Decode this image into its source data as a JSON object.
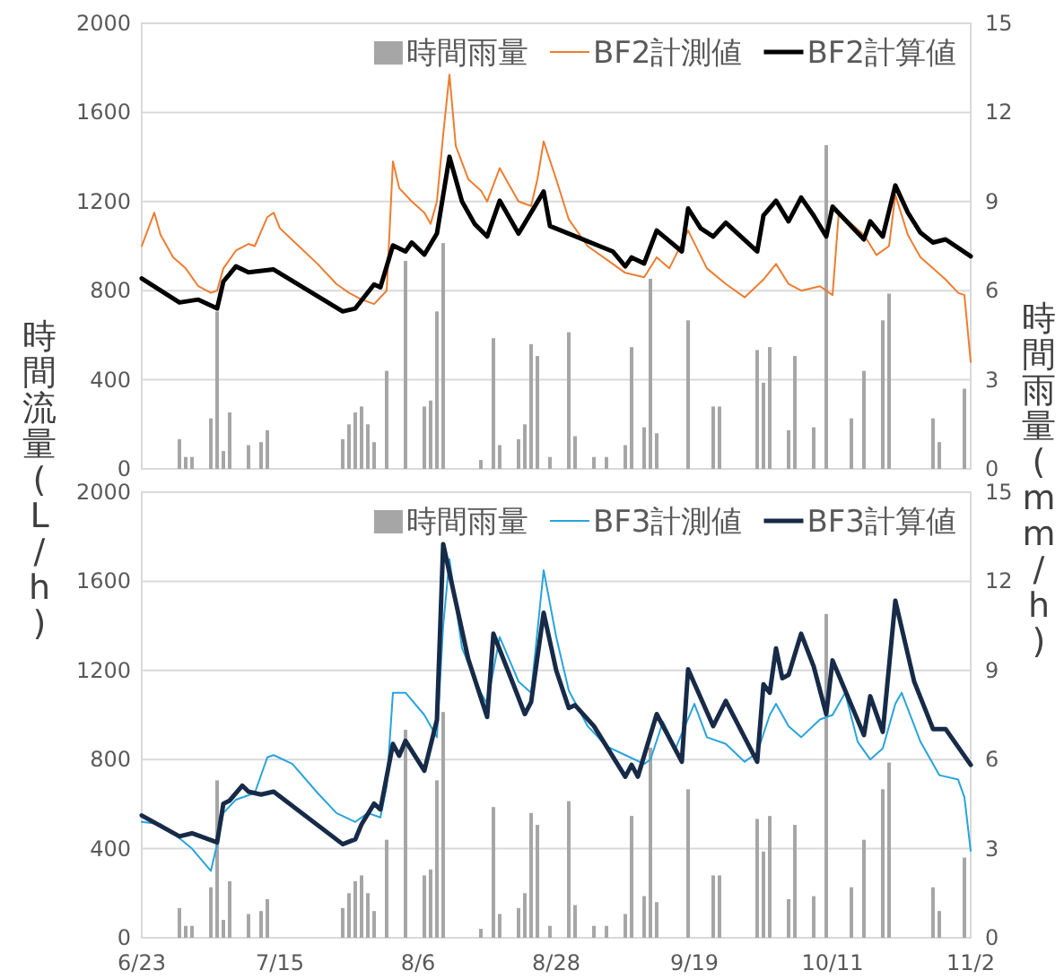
{
  "chart_data": [
    {
      "type": "line",
      "ylabel": "時間流量(L/h)",
      "y2label": "時間雨量(mm/h)",
      "tick_labels": "y",
      "grid": "y",
      "legend": "top right",
      "xlim": [
        "--06-23",
        "--11-02"
      ],
      "ylim": [
        0,
        2000
      ],
      "yticks": [
        0,
        400,
        800,
        1200,
        1600,
        2000
      ],
      "y2lim": [
        0,
        15
      ],
      "y2ticks": [
        0,
        3,
        6,
        9,
        12,
        15
      ],
      "series": [
        {
          "name": "時間雨量",
          "type": "bar",
          "axis": "y2",
          "color": "#a6a6a6",
          "x": [
            "--06-29",
            "--06-30",
            "--07-01",
            "--07-04",
            "--07-05",
            "--07-06",
            "--07-07",
            "--07-10",
            "--07-12",
            "--07-13",
            "--07-25",
            "--07-26",
            "--07-27",
            "--07-28",
            "--07-29",
            "--07-30",
            "--08-01",
            "--08-04",
            "--08-07",
            "--08-08",
            "--08-09",
            "--08-10",
            "--08-16",
            "--08-18",
            "--08-19",
            "--08-22",
            "--08-23",
            "--08-24",
            "--08-25",
            "--08-27",
            "--08-30",
            "--08-31",
            "--09-03",
            "--09-05",
            "--09-08",
            "--09-09",
            "--09-11",
            "--09-12",
            "--09-13",
            "--09-18",
            "--09-22",
            "--09-23",
            "--09-29",
            "--09-30",
            "--10-01",
            "--10-04",
            "--10-05",
            "--10-08",
            "--10-10",
            "--10-14",
            "--10-16",
            "--10-19",
            "--10-20",
            "--10-27",
            "--10-28",
            "--11-01"
          ],
          "values": [
            1.0,
            0.4,
            0.4,
            1.7,
            5.3,
            0.6,
            1.9,
            0.8,
            0.9,
            1.3,
            1.0,
            1.5,
            1.9,
            2.1,
            1.5,
            0.9,
            3.3,
            7.0,
            2.1,
            2.3,
            5.3,
            7.6,
            0.3,
            4.4,
            0.8,
            1.0,
            1.5,
            4.2,
            3.8,
            0.4,
            4.6,
            1.1,
            0.4,
            0.4,
            0.8,
            4.1,
            1.4,
            6.4,
            1.2,
            5.0,
            2.1,
            2.1,
            4.0,
            2.9,
            4.1,
            1.3,
            3.8,
            1.4,
            10.9,
            1.7,
            3.3,
            5.0,
            5.9,
            1.7,
            0.9,
            2.7
          ]
        },
        {
          "name": "BF2計測値",
          "color": "#ed7d31",
          "x": [
            "--06-23",
            "--06-25",
            "--06-26",
            "--06-28",
            "--06-30",
            "--07-02",
            "--07-04",
            "--07-05",
            "--07-06",
            "--07-08",
            "--07-10",
            "--07-11",
            "--07-13",
            "--07-14",
            "--07-15",
            "--07-18",
            "--07-21",
            "--07-24",
            "--07-26",
            "--07-28",
            "--07-30",
            "--08-01",
            "--08-02",
            "--08-03",
            "--08-05",
            "--08-07",
            "--08-08",
            "--08-09",
            "--08-10",
            "--08-11",
            "--08-12",
            "--08-14",
            "--08-16",
            "--08-17",
            "--08-19",
            "--08-20",
            "--08-22",
            "--08-24",
            "--08-25",
            "--08-26",
            "--08-28",
            "--08-30",
            "--09-02",
            "--09-05",
            "--09-08",
            "--09-11",
            "--09-13",
            "--09-15",
            "--09-18",
            "--09-21",
            "--09-24",
            "--09-27",
            "--09-30",
            "--10-02",
            "--10-04",
            "--10-06",
            "--10-09",
            "--10-11",
            "--10-12",
            "--10-14",
            "--10-16",
            "--10-18",
            "--10-20",
            "--10-21",
            "--10-23",
            "--10-25",
            "--10-27",
            "--10-29",
            "--10-31",
            "--11-01",
            "--11-02"
          ],
          "values": [
            1000,
            1150,
            1050,
            950,
            900,
            820,
            790,
            800,
            900,
            980,
            1010,
            1000,
            1130,
            1150,
            1080,
            1000,
            920,
            830,
            790,
            760,
            740,
            800,
            1380,
            1260,
            1200,
            1150,
            1100,
            1200,
            1500,
            1770,
            1450,
            1300,
            1250,
            1200,
            1350,
            1300,
            1200,
            1180,
            1300,
            1470,
            1300,
            1120,
            1000,
            940,
            880,
            860,
            950,
            900,
            1070,
            900,
            830,
            770,
            850,
            920,
            830,
            800,
            820,
            780,
            1150,
            1100,
            1050,
            960,
            1000,
            1230,
            1050,
            950,
            900,
            850,
            790,
            780,
            480
          ]
        },
        {
          "name": "BF2計算値",
          "color": "#000000",
          "x": [
            "--06-23",
            "--06-29",
            "--07-02",
            "--07-05",
            "--07-06",
            "--07-08",
            "--07-10",
            "--07-14",
            "--07-25",
            "--07-27",
            "--07-30",
            "--07-31",
            "--08-02",
            "--08-04",
            "--08-05",
            "--08-07",
            "--08-09",
            "--08-11",
            "--08-13",
            "--08-15",
            "--08-17",
            "--08-19",
            "--08-22",
            "--08-26",
            "--08-27",
            "--08-30",
            "--09-06",
            "--09-08",
            "--09-09",
            "--09-11",
            "--09-13",
            "--09-17",
            "--09-18",
            "--09-20",
            "--09-22",
            "--09-24",
            "--09-29",
            "--09-30",
            "--10-02",
            "--10-04",
            "--10-06",
            "--10-08",
            "--10-10",
            "--10-11",
            "--10-16",
            "--10-17",
            "--10-19",
            "--10-21",
            "--10-23",
            "--10-25",
            "--10-27",
            "--10-29",
            "--11-02"
          ],
          "values": [
            855,
            747,
            760,
            720,
            841,
            909,
            882,
            895,
            707,
            720,
            828,
            815,
            1003,
            976,
            1016,
            962,
            1056,
            1401,
            1200,
            1100,
            1043,
            1204,
            1056,
            1245,
            1090,
            1056,
            976,
            909,
            949,
            922,
            1070,
            976,
            1169,
            1080,
            1043,
            1105,
            976,
            1137,
            1204,
            1111,
            1218,
            1137,
            1043,
            1177,
            1030,
            1111,
            1043,
            1272,
            1150,
            1060,
            1016,
            1030,
            954
          ]
        }
      ]
    },
    {
      "type": "line",
      "grid": "y",
      "legend": "top right",
      "xlim": [
        "--06-23",
        "--11-02"
      ],
      "xticks": [
        {
          "value": "--06-23",
          "label": "6/23"
        },
        {
          "value": "--07-15",
          "label": "7/15"
        },
        {
          "value": "--08-06",
          "label": "8/6"
        },
        {
          "value": "--08-28",
          "label": "8/28"
        },
        {
          "value": "--09-19",
          "label": "9/19"
        },
        {
          "value": "--10-11",
          "label": "10/11"
        },
        {
          "value": "--11-02",
          "label": "11/2"
        }
      ],
      "ylim": [
        0,
        2000
      ],
      "yticks": [
        0,
        400,
        800,
        1200,
        1600,
        2000
      ],
      "y2lim": [
        0,
        15
      ],
      "y2ticks": [
        0,
        3,
        6,
        9,
        12,
        15
      ],
      "series": [
        {
          "name": "時間雨量",
          "type": "bar",
          "axis": "y2",
          "color": "#a6a6a6",
          "x": [
            "--06-29",
            "--06-30",
            "--07-01",
            "--07-04",
            "--07-05",
            "--07-06",
            "--07-07",
            "--07-10",
            "--07-12",
            "--07-13",
            "--07-25",
            "--07-26",
            "--07-27",
            "--07-28",
            "--07-29",
            "--07-30",
            "--08-01",
            "--08-04",
            "--08-07",
            "--08-08",
            "--08-09",
            "--08-10",
            "--08-16",
            "--08-18",
            "--08-19",
            "--08-22",
            "--08-23",
            "--08-24",
            "--08-25",
            "--08-27",
            "--08-30",
            "--08-31",
            "--09-03",
            "--09-05",
            "--09-08",
            "--09-09",
            "--09-11",
            "--09-12",
            "--09-13",
            "--09-18",
            "--09-22",
            "--09-23",
            "--09-29",
            "--09-30",
            "--10-01",
            "--10-04",
            "--10-05",
            "--10-08",
            "--10-10",
            "--10-14",
            "--10-16",
            "--10-19",
            "--10-20",
            "--10-27",
            "--10-28",
            "--11-01"
          ],
          "values": [
            1.0,
            0.4,
            0.4,
            1.7,
            5.3,
            0.6,
            1.9,
            0.8,
            0.9,
            1.3,
            1.0,
            1.5,
            1.9,
            2.1,
            1.5,
            0.9,
            3.3,
            7.0,
            2.1,
            2.3,
            5.3,
            7.6,
            0.3,
            4.4,
            0.8,
            1.0,
            1.5,
            4.2,
            3.8,
            0.4,
            4.6,
            1.1,
            0.4,
            0.4,
            0.8,
            4.1,
            1.4,
            6.4,
            1.2,
            5.0,
            2.1,
            2.1,
            4.0,
            2.9,
            4.1,
            1.3,
            3.8,
            1.4,
            10.9,
            1.7,
            3.3,
            5.0,
            5.9,
            1.7,
            0.9,
            2.7
          ]
        },
        {
          "name": "BF3計測値",
          "color": "#29a3dc",
          "x": [
            "--06-23",
            "--06-26",
            "--06-28",
            "--07-01",
            "--07-04",
            "--07-05",
            "--07-06",
            "--07-08",
            "--07-11",
            "--07-13",
            "--07-14",
            "--07-17",
            "--07-21",
            "--07-24",
            "--07-27",
            "--07-29",
            "--07-31",
            "--08-01",
            "--08-02",
            "--08-04",
            "--08-07",
            "--08-09",
            "--08-10",
            "--08-11",
            "--08-13",
            "--08-16",
            "--08-17",
            "--08-19",
            "--08-22",
            "--08-24",
            "--08-26",
            "--08-28",
            "--08-30",
            "--09-02",
            "--09-05",
            "--09-08",
            "--09-11",
            "--09-12",
            "--09-14",
            "--09-16",
            "--09-19",
            "--09-21",
            "--09-24",
            "--09-27",
            "--09-29",
            "--10-01",
            "--10-02",
            "--10-04",
            "--10-06",
            "--10-09",
            "--10-11",
            "--10-13",
            "--10-15",
            "--10-17",
            "--10-19",
            "--10-21",
            "--10-22",
            "--10-25",
            "--10-28",
            "--10-31",
            "--11-01",
            "--11-02"
          ],
          "values": [
            520,
            510,
            470,
            400,
            300,
            420,
            560,
            620,
            650,
            810,
            820,
            780,
            650,
            560,
            520,
            560,
            540,
            680,
            1100,
            1100,
            1000,
            900,
            1400,
            1700,
            1300,
            1100,
            1050,
            1350,
            1150,
            1100,
            1650,
            1350,
            1110,
            950,
            860,
            820,
            780,
            800,
            970,
            850,
            1050,
            900,
            870,
            790,
            830,
            1000,
            1050,
            950,
            900,
            980,
            1000,
            1100,
            880,
            800,
            850,
            1050,
            1100,
            880,
            730,
            710,
            630,
            390
          ]
        },
        {
          "name": "BF3計算値",
          "color": "#172b48",
          "x": [
            "--06-23",
            "--06-29",
            "--07-01",
            "--07-05",
            "--07-06",
            "--07-07",
            "--07-09",
            "--07-10",
            "--07-12",
            "--07-14",
            "--07-25",
            "--07-27",
            "--07-28",
            "--07-30",
            "--07-31",
            "--08-02",
            "--08-03",
            "--08-04",
            "--08-07",
            "--08-09",
            "--08-10",
            "--08-14",
            "--08-17",
            "--08-18",
            "--08-21",
            "--08-23",
            "--08-24",
            "--08-26",
            "--08-28",
            "--08-30",
            "--08-31",
            "--09-03",
            "--09-08",
            "--09-09",
            "--09-10",
            "--09-13",
            "--09-17",
            "--09-18",
            "--09-22",
            "--09-24",
            "--09-29",
            "--09-30",
            "--10-01",
            "--10-02",
            "--10-03",
            "--10-04",
            "--10-06",
            "--10-08",
            "--10-10",
            "--10-11",
            "--10-16",
            "--10-17",
            "--10-19",
            "--10-20",
            "--10-21",
            "--10-24",
            "--10-27",
            "--10-29",
            "--11-02"
          ],
          "values": [
            549,
            455,
            469,
            428,
            602,
            616,
            683,
            656,
            643,
            656,
            420,
            442,
            509,
            602,
            576,
            870,
            817,
            884,
            750,
            977,
            1767,
            1250,
            991,
            1365,
            1150,
            1004,
            1058,
            1459,
            1200,
            1031,
            1044,
            950,
            723,
            776,
            723,
            1004,
            790,
            1205,
            950,
            1063,
            790,
            1138,
            1100,
            1299,
            1165,
            1180,
            1365,
            1218,
            1004,
            1245,
            910,
            1084,
            924,
            1218,
            1513,
            1150,
            937,
            937,
            776
          ]
        }
      ]
    }
  ]
}
